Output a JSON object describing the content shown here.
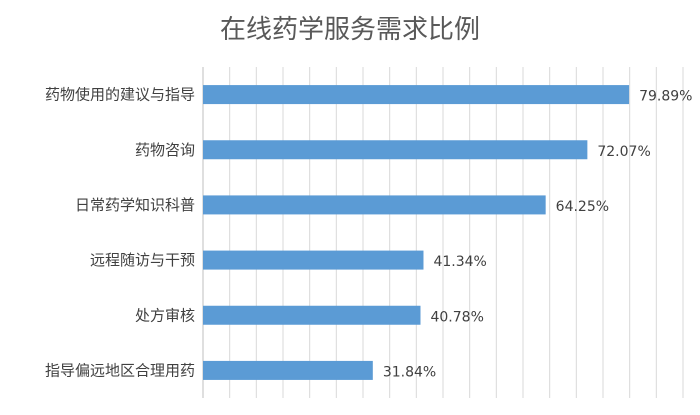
{
  "chart_data": {
    "type": "bar",
    "orientation": "horizontal",
    "title": "在线药学服务需求比例",
    "categories": [
      "药物使用的建议与指导",
      "药物咨询",
      "日常药学知识科普",
      "远程随访与干预",
      "处方审核",
      "指导偏远地区合理用药"
    ],
    "values": [
      79.89,
      72.07,
      64.25,
      41.34,
      40.78,
      31.84
    ],
    "value_labels": [
      "79.89%",
      "72.07%",
      "64.25%",
      "41.34%",
      "40.78%",
      "31.84%"
    ],
    "xlim": [
      0,
      90
    ],
    "grid": true,
    "legend": "none",
    "bar_color": "#5b9bd5"
  }
}
